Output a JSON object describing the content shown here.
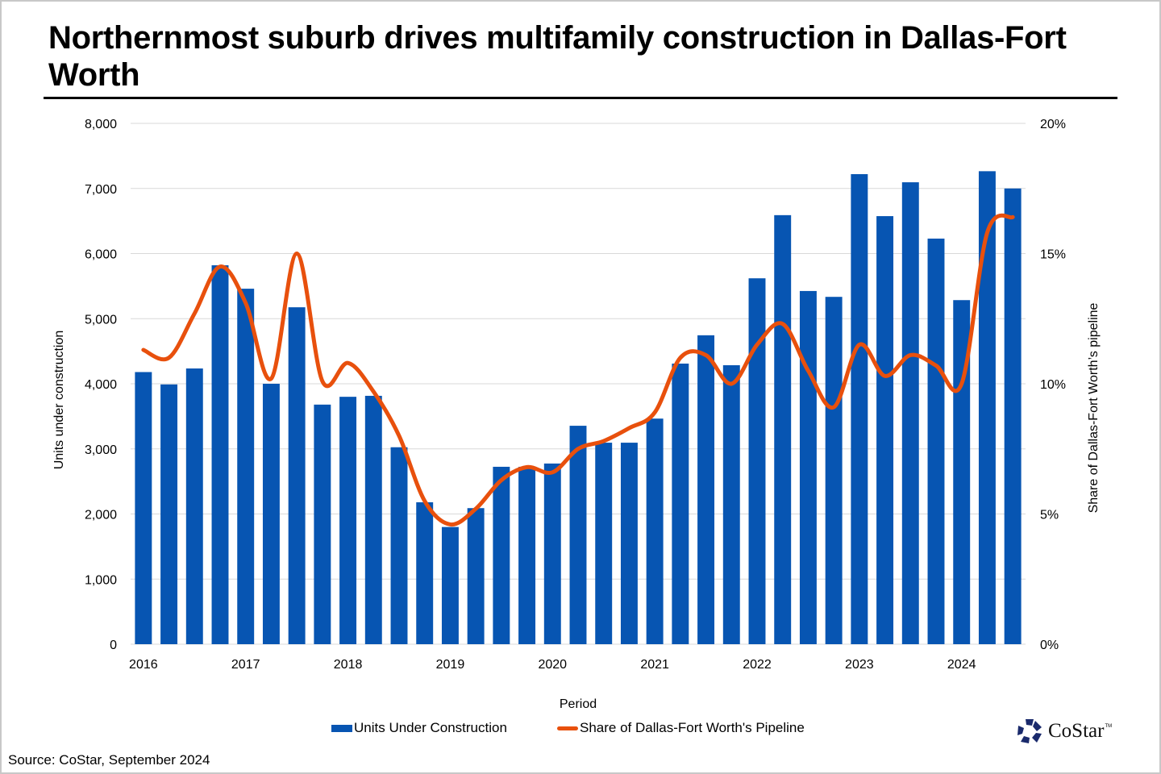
{
  "header": {
    "title": "Northernmost suburb drives multifamily construction in Dallas-Fort Worth"
  },
  "footer": {
    "source": "Source: CoStar, September 2024",
    "logo_text": "CoStar",
    "logo_tm": "TM"
  },
  "colors": {
    "bars": "#0755B2",
    "line": "#E8500D",
    "grid": "#d9d9d9"
  },
  "chart_data": {
    "type": "bar+line",
    "title": "Northernmost suburb drives multifamily construction in Dallas-Fort Worth",
    "xlabel": "Period",
    "ylabel": "Units under construction",
    "y2label": "Share of Dallas-Fort Worth’s pipeline",
    "ylim": [
      0,
      8000
    ],
    "y2lim": [
      0,
      20
    ],
    "y_ticks": [
      "0",
      "1,000",
      "2,000",
      "3,000",
      "4,000",
      "5,000",
      "6,000",
      "7,000",
      "8,000"
    ],
    "y_tick_values": [
      0,
      1000,
      2000,
      3000,
      4000,
      5000,
      6000,
      7000,
      8000
    ],
    "y2_ticks": [
      "0%",
      "5%",
      "10%",
      "15%",
      "20%"
    ],
    "y2_tick_values": [
      0,
      5,
      10,
      15,
      20
    ],
    "x_tick_labels": [
      "2016",
      "2017",
      "2018",
      "2019",
      "2020",
      "2021",
      "2022",
      "2023",
      "2024"
    ],
    "grid": true,
    "legend_position": "bottom",
    "categories": [
      "2016 Q1",
      "2016 Q2",
      "2016 Q3",
      "2016 Q4",
      "2017 Q1",
      "2017 Q2",
      "2017 Q3",
      "2017 Q4",
      "2018 Q1",
      "2018 Q2",
      "2018 Q3",
      "2018 Q4",
      "2019 Q1",
      "2019 Q2",
      "2019 Q3",
      "2019 Q4",
      "2020 Q1",
      "2020 Q2",
      "2020 Q3",
      "2020 Q4",
      "2021 Q1",
      "2021 Q2",
      "2021 Q3",
      "2021 Q4",
      "2022 Q1",
      "2022 Q2",
      "2022 Q3",
      "2022 Q4",
      "2023 Q1",
      "2023 Q2",
      "2023 Q3",
      "2023 Q4",
      "2024 Q1",
      "2024 Q2",
      "2024 Q3"
    ],
    "series": [
      {
        "name": "Units Under Construction",
        "type": "bar",
        "axis": "left",
        "values": [
          4180,
          3990,
          4235,
          5820,
          5460,
          4000,
          5175,
          3680,
          3800,
          3815,
          3025,
          2180,
          1800,
          2090,
          2725,
          2725,
          2775,
          3355,
          3095,
          3095,
          3465,
          4310,
          4745,
          4285,
          5620,
          6590,
          5425,
          5335,
          7220,
          6575,
          7095,
          6230,
          5285,
          7265,
          7000
        ]
      },
      {
        "name": "Share of Dallas-Fort Worth's Pipeline",
        "type": "line",
        "axis": "right",
        "unit": "%",
        "values": [
          11.3,
          11.0,
          12.7,
          14.5,
          13.1,
          10.2,
          15.0,
          10.1,
          10.8,
          9.7,
          8.0,
          5.5,
          4.6,
          5.2,
          6.3,
          6.8,
          6.6,
          7.5,
          7.8,
          8.3,
          8.9,
          11.0,
          11.1,
          10.0,
          11.5,
          12.3,
          10.5,
          9.1,
          11.5,
          10.3,
          11.1,
          10.7,
          10.0,
          15.8,
          16.4
        ]
      }
    ]
  }
}
